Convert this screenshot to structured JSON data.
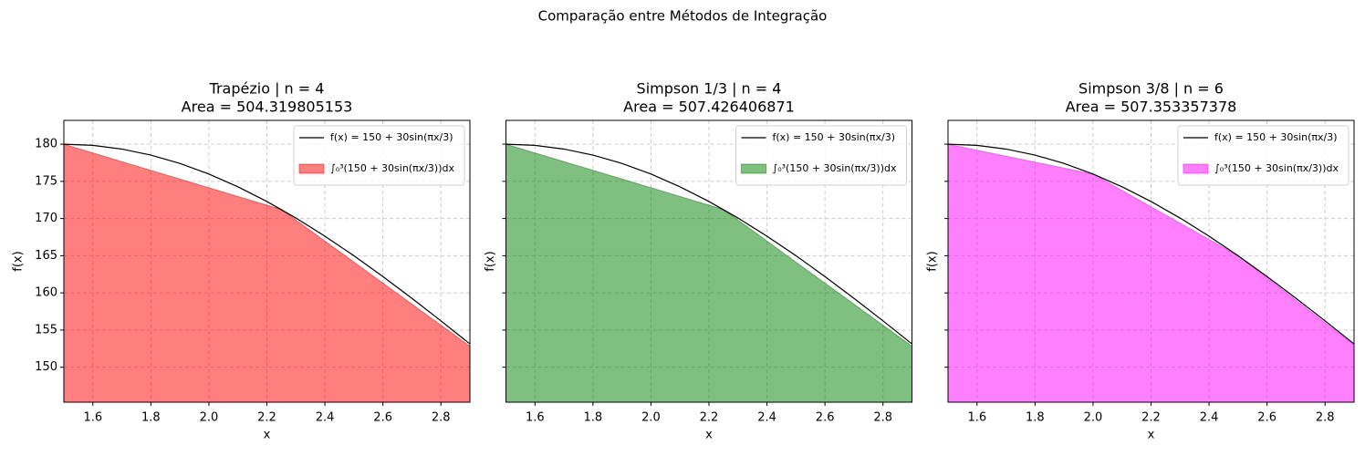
{
  "suptitle": "Comparação entre Métodos de Integração",
  "chart_data": [
    {
      "type": "area",
      "title": "Trapézio | n = 4",
      "subtitle": "Area = 504.319805153",
      "x_label": "x",
      "y_label": "f(x)",
      "xlim": [
        1.5,
        2.9
      ],
      "ylim": [
        145.3,
        183.2
      ],
      "xticks": [
        1.6,
        1.8,
        {
          "value": 2,
          "label": "2.0"
        },
        2.2,
        2.4,
        2.6,
        2.8
      ],
      "yticks": [
        150,
        155,
        160,
        165,
        170,
        175,
        180
      ],
      "show_ytick_labels": true,
      "grid": true,
      "legend": "upper right",
      "series": [
        {
          "name": "f(x) = 150 + 30sin(πx/3)",
          "kind": "line",
          "color": "#000000",
          "x": [
            1.5,
            1.6,
            1.7,
            1.8,
            1.9,
            2.0,
            2.1,
            2.2,
            2.3,
            2.4,
            2.5,
            2.6,
            2.7,
            2.8,
            2.9
          ],
          "values": [
            180,
            179.84,
            179.34,
            178.53,
            177.41,
            175.98,
            174.27,
            172.29,
            170.07,
            167.63,
            165,
            162.2,
            159.27,
            156.24,
            153.14
          ]
        },
        {
          "name": "∫₀³(150 + 30sin(πx/3))dx",
          "kind": "fill",
          "color": "#ff0000",
          "x": [
            1.5,
            2.25,
            3
          ],
          "values": [
            180,
            171.21,
            150
          ]
        }
      ]
    },
    {
      "type": "area",
      "title": "Simpson 1/3 | n = 4",
      "subtitle": "Area = 507.426406871",
      "x_label": "x",
      "y_label": "f(x)",
      "xlim": [
        1.5,
        2.9
      ],
      "ylim": [
        145.3,
        183.2
      ],
      "xticks": [
        1.6,
        1.8,
        {
          "value": 2,
          "label": "2.0"
        },
        2.2,
        2.4,
        2.6,
        2.8
      ],
      "yticks": [
        150,
        155,
        160,
        165,
        170,
        175,
        180
      ],
      "show_ytick_labels": false,
      "grid": true,
      "legend": "upper right",
      "series": [
        {
          "name": "f(x) = 150 + 30sin(πx/3)",
          "kind": "line",
          "color": "#000000",
          "x": [
            1.5,
            1.6,
            1.7,
            1.8,
            1.9,
            2.0,
            2.1,
            2.2,
            2.3,
            2.4,
            2.5,
            2.6,
            2.7,
            2.8,
            2.9
          ],
          "values": [
            180,
            179.84,
            179.34,
            178.53,
            177.41,
            175.98,
            174.27,
            172.29,
            170.07,
            167.63,
            165,
            162.2,
            159.27,
            156.24,
            153.14
          ]
        },
        {
          "name": "∫₀³(150 + 30sin(πx/3))dx",
          "kind": "fill",
          "color": "#008000",
          "x": [
            1.5,
            2.25,
            3
          ],
          "values": [
            180,
            171.21,
            150
          ]
        }
      ]
    },
    {
      "type": "area",
      "title": "Simpson 3/8 | n = 6",
      "subtitle": "Area = 507.353357378",
      "x_label": "x",
      "y_label": "f(x)",
      "xlim": [
        1.5,
        2.9
      ],
      "ylim": [
        145.3,
        183.2
      ],
      "xticks": [
        1.6,
        1.8,
        {
          "value": 2,
          "label": "2.0"
        },
        2.2,
        2.4,
        2.6,
        2.8
      ],
      "yticks": [
        150,
        155,
        160,
        165,
        170,
        175,
        180
      ],
      "show_ytick_labels": false,
      "grid": true,
      "legend": "upper right",
      "series": [
        {
          "name": "f(x) = 150 + 30sin(πx/3)",
          "kind": "line",
          "color": "#000000",
          "x": [
            1.5,
            1.6,
            1.7,
            1.8,
            1.9,
            2.0,
            2.1,
            2.2,
            2.3,
            2.4,
            2.5,
            2.6,
            2.7,
            2.8,
            2.9
          ],
          "values": [
            180,
            179.84,
            179.34,
            178.53,
            177.41,
            175.98,
            174.27,
            172.29,
            170.07,
            167.63,
            165,
            162.2,
            159.27,
            156.24,
            153.14
          ]
        },
        {
          "name": "∫₀³(150 + 30sin(πx/3))dx",
          "kind": "fill",
          "color": "#ff00ff",
          "x": [
            1.5,
            2.0,
            2.5,
            3.0
          ],
          "values": [
            180,
            175.98,
            165,
            150
          ]
        }
      ]
    }
  ]
}
